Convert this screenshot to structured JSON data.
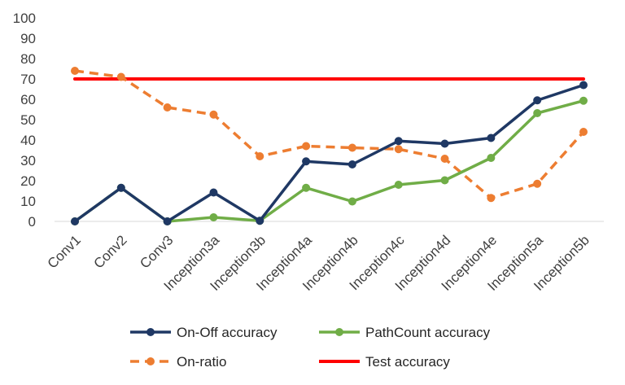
{
  "chart_data": {
    "type": "line",
    "title": "",
    "xlabel": "",
    "ylabel": "",
    "ylim": [
      0,
      100
    ],
    "yticks": [
      0,
      10,
      20,
      30,
      40,
      50,
      60,
      70,
      80,
      90,
      100
    ],
    "grid": false,
    "legend_position": "bottom",
    "categories": [
      "Conv1",
      "Conv2",
      "Conv3",
      "Inception3a",
      "Inception3b",
      "Inception4a",
      "Inception4b",
      "Inception4c",
      "Inception4d",
      "Inception4e",
      "Inception5a",
      "Inception5b"
    ],
    "series": [
      {
        "name": "On-Off accuracy",
        "color": "#1f3864",
        "style": "solid",
        "marker": "circle",
        "values": [
          0,
          16.5,
          0,
          14.2,
          0.3,
          29.5,
          28,
          39.5,
          38.2,
          41,
          59.5,
          67
        ]
      },
      {
        "name": "PathCount accuracy",
        "color": "#70ad47",
        "style": "solid",
        "marker": "circle",
        "values": [
          0,
          16.5,
          0,
          2,
          0.3,
          16.5,
          9.8,
          18,
          20.2,
          31.2,
          53.2,
          59.3
        ]
      },
      {
        "name": "On-ratio",
        "color": "#ed7d31",
        "style": "dashed",
        "marker": "circle",
        "values": [
          74,
          71,
          56,
          52.5,
          32,
          37,
          36.2,
          35.5,
          30.8,
          11.5,
          18.5,
          44
        ]
      },
      {
        "name": "Test accuracy",
        "color": "#ff0000",
        "style": "solid",
        "marker": "none",
        "values": [
          70,
          70,
          70,
          70,
          70,
          70,
          70,
          70,
          70,
          70,
          70,
          70
        ]
      }
    ]
  }
}
